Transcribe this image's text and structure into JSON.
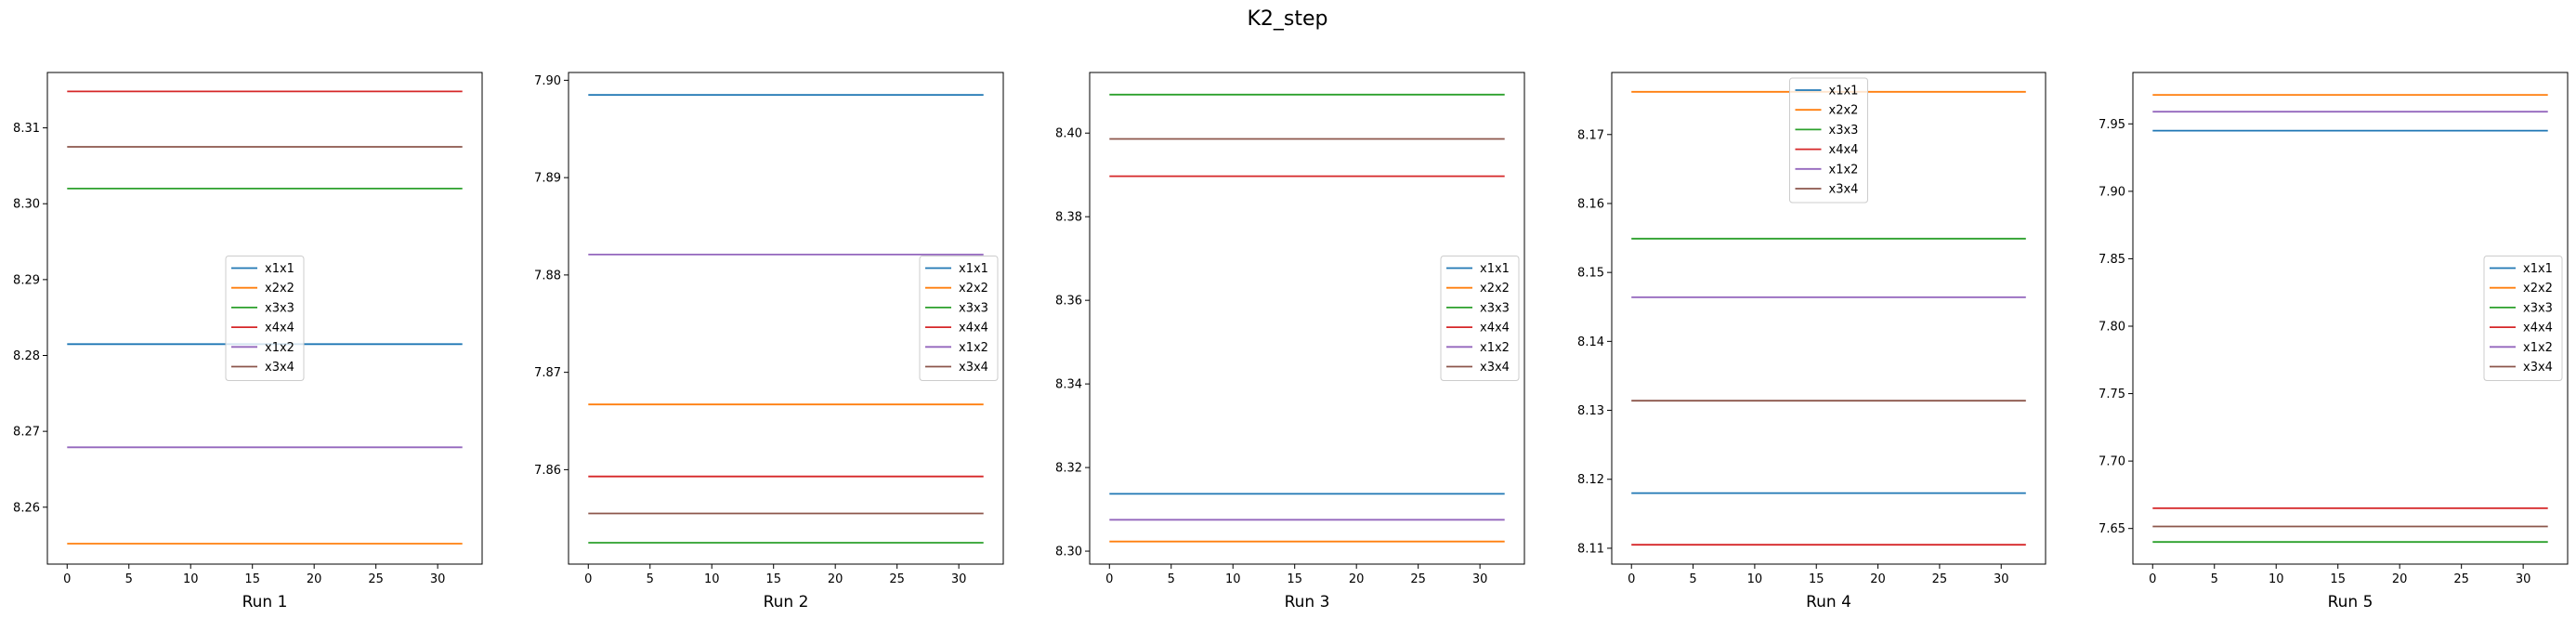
{
  "figure": {
    "title": "K2_step"
  },
  "colors": {
    "x1x1": "#1f77b4",
    "x2x2": "#ff7f0e",
    "x3x3": "#2ca02c",
    "x4x4": "#d62728",
    "x1x2": "#9467bd",
    "x3x4": "#8c564b"
  },
  "chart_data": [
    {
      "type": "line",
      "xlabel": "Run 1",
      "ylabel": "",
      "x": [
        0,
        32
      ],
      "xlim": [
        -1.6,
        33.6
      ],
      "xticks": [
        0,
        5,
        10,
        15,
        20,
        25,
        30
      ],
      "ylim": [
        8.2525,
        8.3173
      ],
      "yticks": [
        8.26,
        8.27,
        8.28,
        8.29,
        8.3,
        8.31
      ],
      "ytick_labels": [
        "8.26",
        "8.27",
        "8.28",
        "8.29",
        "8.30",
        "8.31"
      ],
      "legend_loc": "center",
      "series": [
        {
          "name": "x1x1",
          "values": [
            8.2815,
            8.2815
          ]
        },
        {
          "name": "x2x2",
          "values": [
            8.2552,
            8.2552
          ]
        },
        {
          "name": "x3x3",
          "values": [
            8.302,
            8.302
          ]
        },
        {
          "name": "x4x4",
          "values": [
            8.3148,
            8.3148
          ]
        },
        {
          "name": "x1x2",
          "values": [
            8.2679,
            8.2679
          ]
        },
        {
          "name": "x3x4",
          "values": [
            8.3075,
            8.3075
          ]
        }
      ]
    },
    {
      "type": "line",
      "xlabel": "Run 2",
      "ylabel": "",
      "x": [
        0,
        32
      ],
      "xlim": [
        -1.6,
        33.6
      ],
      "xticks": [
        0,
        5,
        10,
        15,
        20,
        25,
        30
      ],
      "ylim": [
        7.8503,
        7.9008
      ],
      "yticks": [
        7.86,
        7.87,
        7.88,
        7.89,
        7.9
      ],
      "ytick_labels": [
        "7.86",
        "7.87",
        "7.88",
        "7.89",
        "7.90"
      ],
      "legend_loc": "center right",
      "series": [
        {
          "name": "x1x1",
          "values": [
            7.8985,
            7.8985
          ]
        },
        {
          "name": "x2x2",
          "values": [
            7.8667,
            7.8667
          ]
        },
        {
          "name": "x3x3",
          "values": [
            7.8525,
            7.8525
          ]
        },
        {
          "name": "x4x4",
          "values": [
            7.8593,
            7.8593
          ]
        },
        {
          "name": "x1x2",
          "values": [
            7.8821,
            7.8821
          ]
        },
        {
          "name": "x3x4",
          "values": [
            7.8555,
            7.8555
          ]
        }
      ]
    },
    {
      "type": "line",
      "xlabel": "Run 3",
      "ylabel": "",
      "x": [
        0,
        32
      ],
      "xlim": [
        -1.6,
        33.6
      ],
      "xticks": [
        0,
        5,
        10,
        15,
        20,
        25,
        30
      ],
      "ylim": [
        8.2969,
        8.4145
      ],
      "yticks": [
        8.3,
        8.32,
        8.34,
        8.36,
        8.38,
        8.4
      ],
      "ytick_labels": [
        "8.30",
        "8.32",
        "8.34",
        "8.36",
        "8.38",
        "8.40"
      ],
      "legend_loc": "center right",
      "series": [
        {
          "name": "x1x1",
          "values": [
            8.3137,
            8.3137
          ]
        },
        {
          "name": "x2x2",
          "values": [
            8.3023,
            8.3023
          ]
        },
        {
          "name": "x3x3",
          "values": [
            8.4092,
            8.4092
          ]
        },
        {
          "name": "x4x4",
          "values": [
            8.3897,
            8.3897
          ]
        },
        {
          "name": "x1x2",
          "values": [
            8.3075,
            8.3075
          ]
        },
        {
          "name": "x3x4",
          "values": [
            8.3986,
            8.3986
          ]
        }
      ]
    },
    {
      "type": "line",
      "xlabel": "Run 4",
      "ylabel": "",
      "x": [
        0,
        32
      ],
      "xlim": [
        -1.6,
        33.6
      ],
      "xticks": [
        0,
        5,
        10,
        15,
        20,
        25,
        30
      ],
      "ylim": [
        8.1077,
        8.179
      ],
      "yticks": [
        8.11,
        8.12,
        8.13,
        8.14,
        8.15,
        8.16,
        8.17
      ],
      "ytick_labels": [
        "8.11",
        "8.12",
        "8.13",
        "8.14",
        "8.15",
        "8.16",
        "8.17"
      ],
      "legend_loc": "upper center",
      "series": [
        {
          "name": "x1x1",
          "values": [
            8.118,
            8.118
          ]
        },
        {
          "name": "x2x2",
          "values": [
            8.1762,
            8.1762
          ]
        },
        {
          "name": "x3x3",
          "values": [
            8.1549,
            8.1549
          ]
        },
        {
          "name": "x4x4",
          "values": [
            8.1105,
            8.1105
          ]
        },
        {
          "name": "x1x2",
          "values": [
            8.1464,
            8.1464
          ]
        },
        {
          "name": "x3x4",
          "values": [
            8.1314,
            8.1314
          ]
        }
      ]
    },
    {
      "type": "line",
      "xlabel": "Run 5",
      "ylabel": "",
      "x": [
        0,
        32
      ],
      "xlim": [
        -1.6,
        33.6
      ],
      "xticks": [
        0,
        5,
        10,
        15,
        20,
        25,
        30
      ],
      "ylim": [
        7.6236,
        7.9881
      ],
      "yticks": [
        7.65,
        7.7,
        7.75,
        7.8,
        7.85,
        7.9,
        7.95
      ],
      "ytick_labels": [
        "7.65",
        "7.70",
        "7.75",
        "7.80",
        "7.85",
        "7.90",
        "7.95"
      ],
      "legend_loc": "center right",
      "series": [
        {
          "name": "x1x1",
          "values": [
            7.945,
            7.945
          ]
        },
        {
          "name": "x2x2",
          "values": [
            7.9715,
            7.9715
          ]
        },
        {
          "name": "x3x3",
          "values": [
            7.64,
            7.64
          ]
        },
        {
          "name": "x4x4",
          "values": [
            7.665,
            7.665
          ]
        },
        {
          "name": "x1x2",
          "values": [
            7.959,
            7.959
          ]
        },
        {
          "name": "x3x4",
          "values": [
            7.6515,
            7.6515
          ]
        }
      ]
    }
  ]
}
